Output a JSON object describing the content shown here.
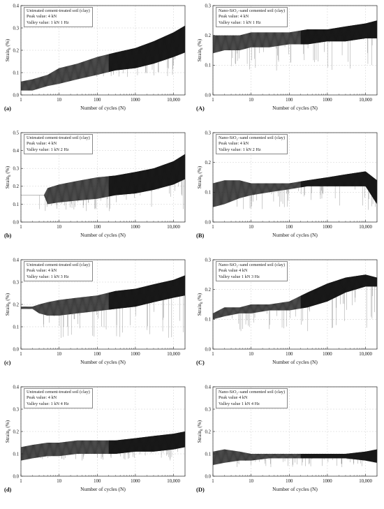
{
  "chart_data": [
    {
      "type": "line",
      "panel_label": "(a)",
      "legend_title": "Untreated cement-treated soil (clay)",
      "legend_lines": [
        "Peak value: 4 kN",
        "Valley value: 1 kN 1 Hz"
      ],
      "xlabel": "Number of cycles (N)",
      "ylabel": "Strain",
      "ylabel_sub": "d",
      "ylabel_unit": "(%)",
      "x_scale": "log",
      "xlim": [
        1,
        20000
      ],
      "ylim": [
        0,
        0.4
      ],
      "x_ticks": [
        1,
        10,
        100,
        1000,
        10000
      ],
      "x_tick_labels": [
        "1",
        "10",
        "100",
        "1000",
        "10,000"
      ],
      "y_ticks": [
        0.0,
        0.1,
        0.2,
        0.3,
        0.4
      ],
      "y_tick_labels": [
        "0.0",
        "0.1",
        "0.2",
        "0.3",
        "0.4"
      ],
      "grid": true,
      "envelope": {
        "x": [
          1,
          2,
          5,
          10,
          30,
          100,
          300,
          1000,
          3000,
          10000,
          20000
        ],
        "upper": [
          0.06,
          0.07,
          0.09,
          0.12,
          0.14,
          0.17,
          0.19,
          0.21,
          0.24,
          0.28,
          0.31
        ],
        "lower": [
          0.02,
          0.02,
          0.04,
          0.05,
          0.07,
          0.09,
          0.11,
          0.12,
          0.14,
          0.17,
          0.19
        ]
      },
      "spikes_min": 0.08
    },
    {
      "type": "line",
      "panel_label": "(A)",
      "legend_title": "Nano-SiO₂–sand cemented soil (clay)",
      "legend_lines": [
        "Peak value: 4 kN",
        "Valley value: 1 kN 1 Hz"
      ],
      "xlabel": "Number of cycles (N)",
      "ylabel": "Strain",
      "ylabel_sub": "d",
      "ylabel_unit": "(%)",
      "x_scale": "log",
      "xlim": [
        1,
        20000
      ],
      "ylim": [
        0,
        0.3
      ],
      "x_ticks": [
        1,
        10,
        100,
        1000,
        10000
      ],
      "x_tick_labels": [
        "1",
        "10",
        "100",
        "1000",
        "10,000"
      ],
      "y_ticks": [
        0.0,
        0.1,
        0.2,
        0.3
      ],
      "y_tick_labels": [
        "0.0",
        "0.1",
        "0.2",
        "0.3"
      ],
      "grid": true,
      "envelope": {
        "x": [
          1,
          2,
          5,
          10,
          30,
          100,
          300,
          1000,
          3000,
          10000,
          20000
        ],
        "upper": [
          0.2,
          0.2,
          0.2,
          0.21,
          0.21,
          0.21,
          0.22,
          0.22,
          0.23,
          0.24,
          0.25
        ],
        "lower": [
          0.14,
          0.15,
          0.15,
          0.16,
          0.16,
          0.17,
          0.17,
          0.18,
          0.18,
          0.19,
          0.19
        ]
      },
      "spikes_min": 0.08
    },
    {
      "type": "line",
      "panel_label": "(b)",
      "legend_title": "Untreated cement-treated soil (clay)",
      "legend_lines": [
        "Peak value: 4 kN",
        "Valley value: 1 kN 2 Hz"
      ],
      "xlabel": "Number of cycles (N)",
      "ylabel": "Strain",
      "ylabel_sub": "d",
      "ylabel_unit": "(%)",
      "x_scale": "log",
      "xlim": [
        1,
        20000
      ],
      "ylim": [
        0,
        0.5
      ],
      "x_ticks": [
        1,
        10,
        100,
        1000,
        10000
      ],
      "x_tick_labels": [
        "1",
        "10",
        "100",
        "1000",
        "10,000"
      ],
      "y_ticks": [
        0.0,
        0.1,
        0.2,
        0.3,
        0.4,
        0.5
      ],
      "y_tick_labels": [
        "0.0",
        "0.1",
        "0.2",
        "0.3",
        "0.4",
        "0.5"
      ],
      "grid": true,
      "envelope": {
        "x": [
          1,
          4,
          5,
          10,
          30,
          100,
          300,
          1000,
          3000,
          10000,
          20000
        ],
        "upper": [
          0.15,
          0.15,
          0.19,
          0.21,
          0.23,
          0.25,
          0.26,
          0.28,
          0.3,
          0.34,
          0.38
        ],
        "lower": [
          0.15,
          0.15,
          0.1,
          0.11,
          0.12,
          0.13,
          0.15,
          0.16,
          0.18,
          0.21,
          0.24
        ]
      },
      "spikes_min": 0.06
    },
    {
      "type": "line",
      "panel_label": "(B)",
      "legend_title": "Nano-SiO₂–sand cemented soil (clay)",
      "legend_lines": [
        "Peak value: 4 kN",
        "Valley value: 1 kN 2 Hz"
      ],
      "xlabel": "Number of cycles (N)",
      "ylabel": "Strain",
      "ylabel_sub": "d",
      "ylabel_unit": "(%)",
      "x_scale": "log",
      "xlim": [
        1,
        20000
      ],
      "ylim": [
        0,
        0.3
      ],
      "x_ticks": [
        1,
        10,
        100,
        1000,
        10000
      ],
      "x_tick_labels": [
        "1",
        "10",
        "100",
        "1000",
        "10,000"
      ],
      "y_ticks": [
        0.0,
        0.1,
        0.2,
        0.3
      ],
      "y_tick_labels": [
        "0.0",
        "0.1",
        "0.2",
        "0.3"
      ],
      "grid": true,
      "envelope": {
        "x": [
          1,
          2,
          5,
          10,
          30,
          100,
          300,
          1000,
          3000,
          10000,
          20000
        ],
        "upper": [
          0.13,
          0.14,
          0.14,
          0.13,
          0.13,
          0.13,
          0.14,
          0.15,
          0.16,
          0.17,
          0.14
        ],
        "lower": [
          0.05,
          0.06,
          0.08,
          0.09,
          0.1,
          0.11,
          0.12,
          0.12,
          0.12,
          0.12,
          0.06
        ]
      },
      "spikes_min": 0.04
    },
    {
      "type": "line",
      "panel_label": "(c)",
      "legend_title": "Untreated cement-treated soil (clay)",
      "legend_lines": [
        "Peak value: 4 kN",
        "Valley value: 1 kN 3 Hz"
      ],
      "xlabel": "Number of cycles (N)",
      "ylabel": "Strain",
      "ylabel_sub": "d",
      "ylabel_unit": "(%)",
      "x_scale": "log",
      "xlim": [
        1,
        20000
      ],
      "ylim": [
        0,
        0.4
      ],
      "x_ticks": [
        1,
        10,
        100,
        1000,
        10000
      ],
      "x_tick_labels": [
        "1",
        "10",
        "100",
        "1000",
        "10,000"
      ],
      "y_ticks": [
        0.0,
        0.1,
        0.2,
        0.3,
        0.4
      ],
      "y_tick_labels": [
        "0.0",
        "0.1",
        "0.2",
        "0.3",
        "0.4"
      ],
      "grid": true,
      "envelope": {
        "x": [
          1,
          2,
          3,
          5,
          10,
          30,
          100,
          300,
          1000,
          3000,
          10000,
          20000
        ],
        "upper": [
          0.19,
          0.19,
          0.2,
          0.21,
          0.22,
          0.23,
          0.24,
          0.26,
          0.27,
          0.29,
          0.31,
          0.33
        ],
        "lower": [
          0.18,
          0.18,
          0.16,
          0.15,
          0.15,
          0.16,
          0.17,
          0.18,
          0.19,
          0.21,
          0.23,
          0.24
        ]
      },
      "spikes_min": 0.05
    },
    {
      "type": "line",
      "panel_label": "(C)",
      "legend_title": "Nano-SiO₂–sand cemented soil (clay)",
      "legend_lines": [
        "Peak value 4 kN",
        "Valley value 1 kN 3 Hz"
      ],
      "xlabel": "Number of cycles (N)",
      "ylabel": "Strain",
      "ylabel_sub": "d",
      "ylabel_unit": "(%)",
      "x_scale": "log",
      "xlim": [
        1,
        20000
      ],
      "ylim": [
        0,
        0.3
      ],
      "x_ticks": [
        1,
        10,
        100,
        1000,
        10000
      ],
      "x_tick_labels": [
        "1",
        "10",
        "100",
        "1000",
        "10,000"
      ],
      "y_ticks": [
        0.0,
        0.1,
        0.2,
        0.3
      ],
      "y_tick_labels": [
        "0.0",
        "0.1",
        "0.2",
        "0.3"
      ],
      "grid": true,
      "envelope": {
        "x": [
          1,
          2,
          5,
          10,
          30,
          100,
          300,
          1000,
          3000,
          10000,
          20000
        ],
        "upper": [
          0.12,
          0.14,
          0.14,
          0.15,
          0.15,
          0.16,
          0.19,
          0.22,
          0.24,
          0.25,
          0.24
        ],
        "lower": [
          0.1,
          0.11,
          0.12,
          0.12,
          0.13,
          0.13,
          0.14,
          0.16,
          0.19,
          0.21,
          0.21
        ]
      },
      "spikes_min": 0.06
    },
    {
      "type": "line",
      "panel_label": "(d)",
      "legend_title": "Untreated cement-treated soil (clay)",
      "legend_lines": [
        "Peak value: 4 kN",
        "Valley value: 1 kN 4 Hz"
      ],
      "xlabel": "Number of cycles (N)",
      "ylabel": "Strain",
      "ylabel_sub": "d",
      "ylabel_unit": "(%)",
      "x_scale": "log",
      "xlim": [
        1,
        20000
      ],
      "ylim": [
        0,
        0.4
      ],
      "x_ticks": [
        1,
        10,
        100,
        1000,
        10000
      ],
      "x_tick_labels": [
        "1",
        "10",
        "100",
        "1000",
        "10,000"
      ],
      "y_ticks": [
        0.0,
        0.1,
        0.2,
        0.3,
        0.4
      ],
      "y_tick_labels": [
        "0.0",
        "0.1",
        "0.2",
        "0.3",
        "0.4"
      ],
      "grid": true,
      "envelope": {
        "x": [
          1,
          2,
          5,
          10,
          30,
          100,
          300,
          1000,
          3000,
          10000,
          20000
        ],
        "upper": [
          0.13,
          0.14,
          0.15,
          0.15,
          0.16,
          0.16,
          0.16,
          0.17,
          0.18,
          0.19,
          0.2
        ],
        "lower": [
          0.07,
          0.08,
          0.09,
          0.09,
          0.1,
          0.1,
          0.1,
          0.11,
          0.11,
          0.12,
          0.13
        ]
      },
      "spikes_min": 0.07
    },
    {
      "type": "line",
      "panel_label": "(D)",
      "legend_title": "Nano-SiO₂–sand cemented soil (clay)",
      "legend_lines": [
        "Peak value 4 kN",
        "Valley value 1 kN 4 Hz"
      ],
      "xlabel": "Number of cycles (N)",
      "ylabel": "Strain",
      "ylabel_sub": "d",
      "ylabel_unit": "(%)",
      "x_scale": "log",
      "xlim": [
        1,
        20000
      ],
      "ylim": [
        0,
        0.4
      ],
      "x_ticks": [
        1,
        10,
        100,
        1000,
        10000
      ],
      "x_tick_labels": [
        "1",
        "10",
        "100",
        "1000",
        "10,000"
      ],
      "y_ticks": [
        0.0,
        0.1,
        0.2,
        0.3,
        0.4
      ],
      "y_tick_labels": [
        "0.0",
        "0.1",
        "0.2",
        "0.3",
        "0.4"
      ],
      "grid": true,
      "envelope": {
        "x": [
          1,
          2,
          5,
          10,
          30,
          100,
          300,
          1000,
          3000,
          10000,
          20000
        ],
        "upper": [
          0.11,
          0.12,
          0.11,
          0.1,
          0.1,
          0.1,
          0.1,
          0.1,
          0.1,
          0.11,
          0.12
        ],
        "lower": [
          0.05,
          0.06,
          0.07,
          0.07,
          0.08,
          0.08,
          0.08,
          0.08,
          0.08,
          0.07,
          0.06
        ]
      },
      "spikes_min": 0.04
    }
  ]
}
